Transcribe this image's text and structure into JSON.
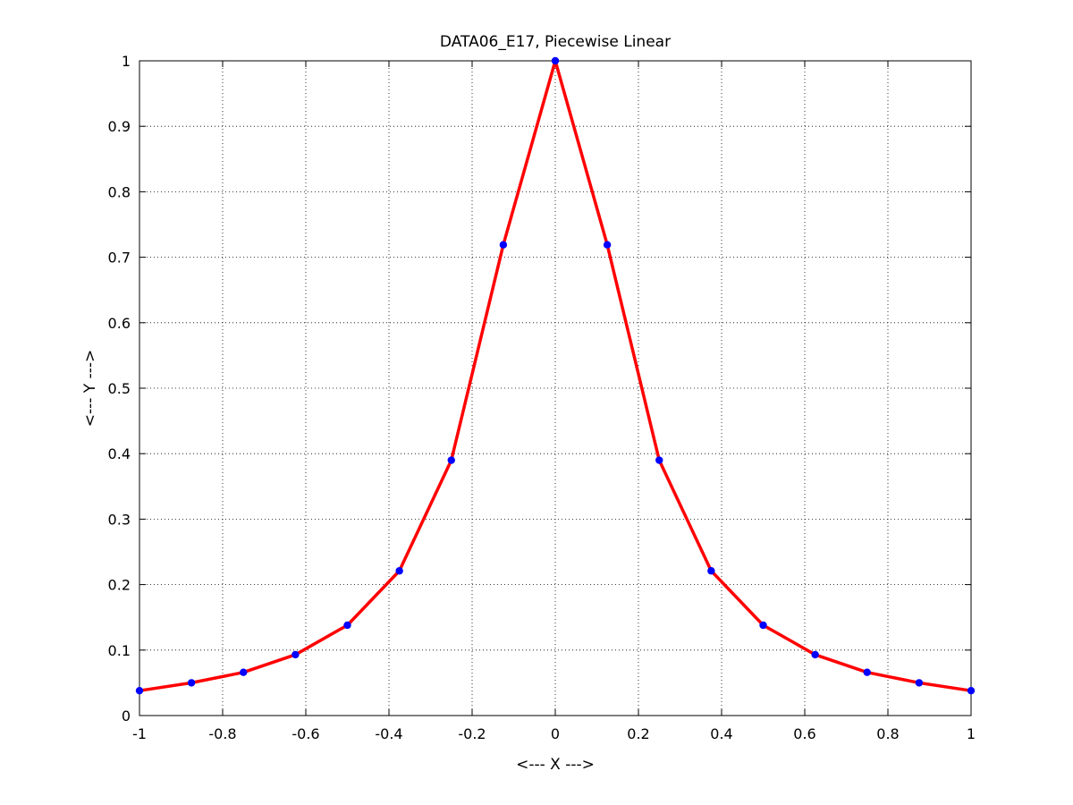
{
  "chart_data": {
    "type": "line",
    "title": "DATA06_E17, Piecewise Linear",
    "xlabel": "<--- X --->",
    "ylabel": "<--- Y --->",
    "xlim": [
      -1,
      1
    ],
    "ylim": [
      0,
      1
    ],
    "xticks": [
      -1,
      -0.8,
      -0.6,
      -0.4,
      -0.2,
      0,
      0.2,
      0.4,
      0.6,
      0.8,
      1
    ],
    "yticks": [
      0,
      0.1,
      0.2,
      0.3,
      0.4,
      0.5,
      0.6,
      0.7,
      0.8,
      0.9,
      1
    ],
    "xtick_labels": [
      "-1",
      "-0.8",
      "-0.6",
      "-0.4",
      "-0.2",
      "0",
      "0.2",
      "0.4",
      "0.6",
      "0.8",
      "1"
    ],
    "ytick_labels": [
      "0",
      "0.1",
      "0.2",
      "0.3",
      "0.4",
      "0.5",
      "0.6",
      "0.7",
      "0.8",
      "0.9",
      "1"
    ],
    "grid": true,
    "line_color": "#ff0000",
    "marker_color": "#0000ff",
    "x": [
      -1,
      -0.875,
      -0.75,
      -0.625,
      -0.5,
      -0.375,
      -0.25,
      -0.125,
      0,
      0.125,
      0.25,
      0.375,
      0.5,
      0.625,
      0.75,
      0.875,
      1
    ],
    "y": [
      0.038,
      0.05,
      0.066,
      0.093,
      0.138,
      0.221,
      0.39,
      0.719,
      1.0,
      0.719,
      0.39,
      0.221,
      0.138,
      0.093,
      0.066,
      0.05,
      0.038
    ]
  }
}
